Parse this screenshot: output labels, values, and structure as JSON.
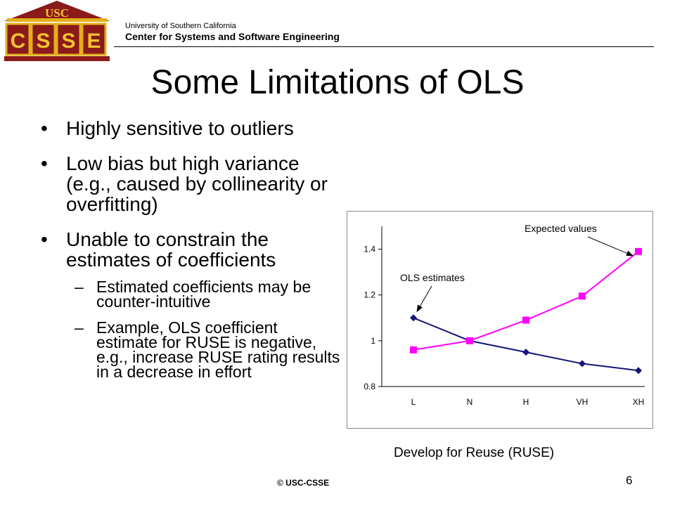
{
  "logo": {
    "top_text": "USC",
    "letters": [
      "C",
      "S",
      "S",
      "E"
    ]
  },
  "header": {
    "university": "University of Southern California",
    "center": "Center for Systems and Software Engineering"
  },
  "title": "Some Limitations of OLS",
  "bullets": [
    {
      "text": "Highly sensitive to outliers"
    },
    {
      "text": "Low bias but high variance (e.g., caused by collinearity or overfitting)"
    },
    {
      "text": "Unable to constrain the estimates of coefficients",
      "sub": [
        "Estimated coefficients may be counter-intuitive",
        "Example, OLS coefficient estimate for RUSE is negative, e.g., increase RUSE rating results in a decrease in effort"
      ]
    }
  ],
  "chart_data": {
    "type": "line",
    "categories": [
      "L",
      "N",
      "H",
      "VH",
      "XH"
    ],
    "yticks": [
      "0.8",
      "1",
      "1.2",
      "1.4"
    ],
    "ylim": [
      0.8,
      1.5
    ],
    "series": [
      {
        "values": [
          1.1,
          1.0,
          0.95,
          0.9,
          0.87
        ],
        "color": "#14147a",
        "marker": "diamond"
      },
      {
        "values": [
          0.96,
          1.0,
          1.09,
          1.195,
          1.39
        ],
        "color": "#ff00ff",
        "marker": "square"
      }
    ],
    "annotations": [
      {
        "text": "OLS estimates",
        "target_series": 0,
        "target_index": 0
      },
      {
        "text": "Expected values",
        "target_series": 1,
        "target_index": 4
      }
    ],
    "grid": false
  },
  "x_caption": "Develop for Reuse (RUSE)",
  "footer": "© USC-CSSE",
  "page_number": "6"
}
